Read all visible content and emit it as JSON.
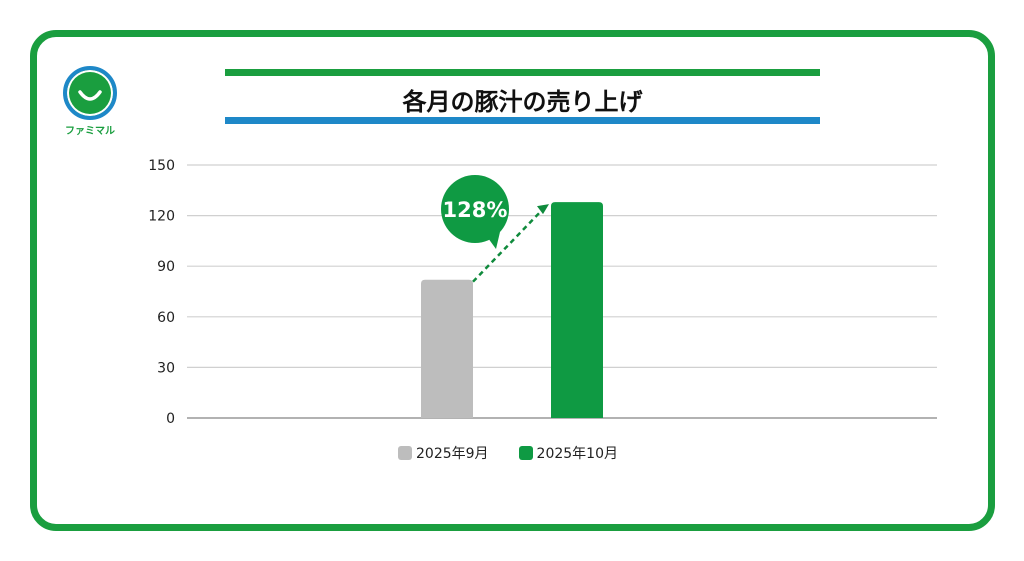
{
  "logo": {
    "text": "ファミマル"
  },
  "title": "各月の豚汁の売り上げ",
  "colors": {
    "frame": "#1a9e3f",
    "accent_blue": "#1e88c8",
    "sep": "#bdbdbd",
    "oct": "#0f9a43"
  },
  "chart_data": {
    "type": "bar",
    "title": "各月の豚汁の売り上げ",
    "categories": [
      "2025年9月",
      "2025年10月"
    ],
    "series": [
      {
        "name": "2025年9月",
        "values": [
          82,
          null
        ],
        "color": "#bdbdbd"
      },
      {
        "name": "2025年10月",
        "values": [
          null,
          128
        ],
        "color": "#0f9a43"
      }
    ],
    "ylim": [
      0,
      150
    ],
    "yticks": [
      0,
      30,
      60,
      90,
      120,
      150
    ],
    "grid": true,
    "legend": "bottom",
    "annotation": {
      "text": "128%",
      "shape": "speech-bubble",
      "arrow": "dashed from 2025年9月 to 2025年10月"
    }
  }
}
